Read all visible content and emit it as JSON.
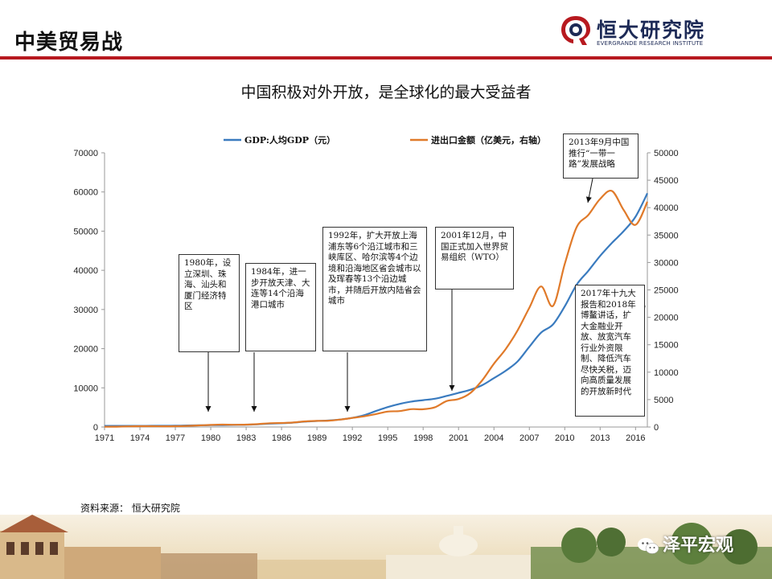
{
  "header": {
    "title": "中美贸易战"
  },
  "logo": {
    "name_cn": "恒大研究院",
    "name_en": "EVERGRANDE RESEARCH INSTITUTE",
    "brand_color": "#b7191f",
    "brand_navy": "#1d2a56",
    "icon": "evergrande-logo-icon"
  },
  "chart_title": "中国积极对外开放，是全球化的最大受益者",
  "chart_data": {
    "type": "line",
    "title": "中国积极对外开放，是全球化的最大受益者",
    "x_ticks": [
      "1971",
      "1974",
      "1977",
      "1980",
      "1983",
      "1986",
      "1989",
      "1992",
      "1995",
      "1998",
      "2001",
      "2004",
      "2007",
      "2010",
      "2013",
      "2016"
    ],
    "y_left_ticks": [
      "0",
      "10000",
      "20000",
      "30000",
      "40000",
      "50000",
      "60000",
      "70000"
    ],
    "y_right_ticks": [
      "0",
      "5000",
      "10000",
      "15000",
      "20000",
      "25000",
      "30000",
      "35000",
      "40000",
      "45000",
      "50000"
    ],
    "ylim_left": [
      0,
      70000
    ],
    "ylim_right": [
      0,
      50000
    ],
    "xlim": [
      1971,
      2017
    ],
    "legend_position": "top",
    "grid": false,
    "series": [
      {
        "name": "GDP:人均GDP（元）",
        "axis": "left",
        "color": "#3a7bbf",
        "x": [
          1971,
          1972,
          1973,
          1974,
          1975,
          1976,
          1977,
          1978,
          1979,
          1980,
          1981,
          1982,
          1983,
          1984,
          1985,
          1986,
          1987,
          1988,
          1989,
          1990,
          1991,
          1992,
          1993,
          1994,
          1995,
          1996,
          1997,
          1998,
          1999,
          2000,
          2001,
          2002,
          2003,
          2004,
          2005,
          2006,
          2007,
          2008,
          2009,
          2010,
          2011,
          2012,
          2013,
          2014,
          2015,
          2016,
          2017
        ],
        "values": [
          280,
          290,
          290,
          280,
          310,
          300,
          320,
          385,
          423,
          468,
          497,
          533,
          588,
          702,
          866,
          973,
          1123,
          1378,
          1536,
          1663,
          1912,
          2334,
          3027,
          4081,
          5091,
          5898,
          6481,
          6860,
          7229,
          7942,
          8717,
          9506,
          10666,
          12487,
          14368,
          16738,
          20494,
          24100,
          26180,
          30808,
          36302,
          39874,
          43684,
          47005,
          50028,
          53680,
          59660
        ]
      },
      {
        "name": "进出口金额（亿美元，右轴）",
        "axis": "right",
        "color": "#e07a2a",
        "x": [
          1971,
          1972,
          1973,
          1974,
          1975,
          1976,
          1977,
          1978,
          1979,
          1980,
          1981,
          1982,
          1983,
          1984,
          1985,
          1986,
          1987,
          1988,
          1989,
          1990,
          1991,
          1992,
          1993,
          1994,
          1995,
          1996,
          1997,
          1998,
          1999,
          2000,
          2001,
          2002,
          2003,
          2004,
          2005,
          2006,
          2007,
          2008,
          2009,
          2010,
          2011,
          2012,
          2013,
          2014,
          2015,
          2016,
          2017
        ],
        "values": [
          48,
          63,
          110,
          146,
          148,
          134,
          148,
          206,
          293,
          381,
          440,
          416,
          436,
          535,
          696,
          738,
          827,
          1028,
          1117,
          1154,
          1357,
          1655,
          1957,
          2366,
          2809,
          2899,
          3252,
          3240,
          3606,
          4743,
          5097,
          6208,
          8510,
          11546,
          14219,
          17604,
          21761,
          25633,
          22075,
          29740,
          36419,
          38671,
          41590,
          43030,
          39530,
          36856,
          41071
        ]
      }
    ]
  },
  "annotations": [
    {
      "id": "1980",
      "text": "1980年，设立深圳、珠海、汕头和厦门经济特区"
    },
    {
      "id": "1984",
      "text": "1984年，进一步开放天津、大连等14个沿海港口城市"
    },
    {
      "id": "1992",
      "text": "1992年，扩大开放上海浦东等6个沿江城市和三峡库区、哈尔滨等4个边境和沿海地区省会城市以及珲春等13个沿边城市，并随后开放内陆省会城市"
    },
    {
      "id": "2001",
      "text": "2001年12月，中国正式加入世界贸易组织（WTO）"
    },
    {
      "id": "2013",
      "text": "2013年9月中国推行“一带一路”发展战略"
    },
    {
      "id": "2017",
      "text": "2017年十九大报告和2018年博鳌讲话，扩大金融业开放、放宽汽车行业外资限制、降低汽车尽快关税，迈向高质量发展的开放新时代"
    }
  ],
  "source": "资料来源：  恒大研究院",
  "watermark": {
    "text": "泽平宏观",
    "icon": "wechat-icon"
  }
}
